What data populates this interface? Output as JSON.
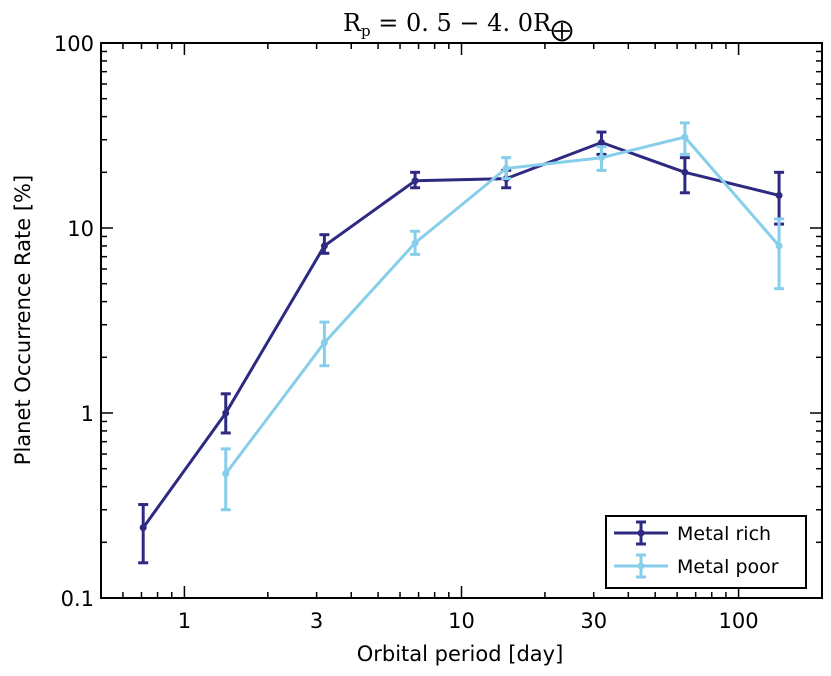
{
  "chart_data": {
    "type": "line",
    "title_parts": {
      "base": "R",
      "base_sub": "p",
      "middle": " = 0. 5 − 4. 0R",
      "symbol": "⨁"
    },
    "xlabel": "Orbital period [day]",
    "ylabel": "Planet Occurrence Rate [%]",
    "xscale": "log",
    "yscale": "log",
    "xlim": [
      0.5,
      200
    ],
    "ylim": [
      0.1,
      100
    ],
    "xticks": [
      {
        "value": 1,
        "label": "1"
      },
      {
        "value": 3,
        "label": "3"
      },
      {
        "value": 10,
        "label": "10"
      },
      {
        "value": 30,
        "label": "30"
      },
      {
        "value": 100,
        "label": "100"
      }
    ],
    "yticks": [
      {
        "value": 0.1,
        "label": "0.1"
      },
      {
        "value": 1,
        "label": "1"
      },
      {
        "value": 10,
        "label": "10"
      },
      {
        "value": 100,
        "label": "100"
      }
    ],
    "legend_position": "lower-right",
    "series": [
      {
        "name": "Metal rich",
        "color": "#2e2a82",
        "points": [
          {
            "x": 0.71,
            "y": 0.24,
            "lo": 0.155,
            "hi": 0.32
          },
          {
            "x": 1.41,
            "y": 1.0,
            "lo": 0.78,
            "hi": 1.27
          },
          {
            "x": 3.2,
            "y": 8.0,
            "lo": 7.3,
            "hi": 9.2
          },
          {
            "x": 6.8,
            "y": 18.0,
            "lo": 16.5,
            "hi": 20.0
          },
          {
            "x": 14.5,
            "y": 18.5,
            "lo": 16.5,
            "hi": 20.5
          },
          {
            "x": 32,
            "y": 29.0,
            "lo": 25.0,
            "hi": 33.0
          },
          {
            "x": 64,
            "y": 20.0,
            "lo": 15.5,
            "hi": 24.0
          },
          {
            "x": 140,
            "y": 15.0,
            "lo": 10.5,
            "hi": 20.0
          }
        ]
      },
      {
        "name": "Metal poor",
        "color": "#87ceeb",
        "points": [
          {
            "x": 1.41,
            "y": 0.47,
            "lo": 0.3,
            "hi": 0.64
          },
          {
            "x": 3.2,
            "y": 2.4,
            "lo": 1.8,
            "hi": 3.1
          },
          {
            "x": 6.8,
            "y": 8.3,
            "lo": 7.2,
            "hi": 9.6
          },
          {
            "x": 14.5,
            "y": 21.0,
            "lo": 18.5,
            "hi": 24.0
          },
          {
            "x": 32,
            "y": 24.0,
            "lo": 20.5,
            "hi": 27.5
          },
          {
            "x": 64,
            "y": 31.0,
            "lo": 25.0,
            "hi": 37.0
          },
          {
            "x": 140,
            "y": 8.0,
            "lo": 4.7,
            "hi": 11.2
          }
        ]
      }
    ]
  }
}
